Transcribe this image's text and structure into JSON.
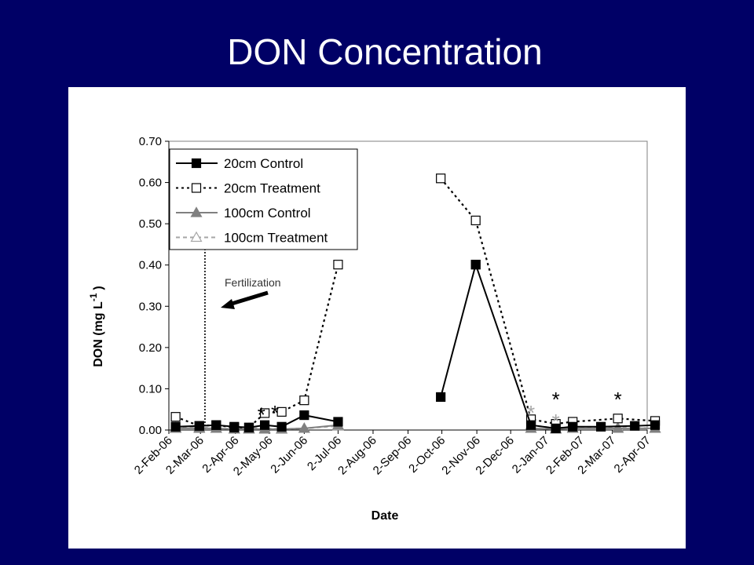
{
  "slide": {
    "title": "DON Concentration"
  },
  "chart_data": {
    "type": "line",
    "xlabel": "Date",
    "ylabel": "DON (mg L",
    "ylabel_sup": "-1",
    "ylabel_close": ")",
    "ylim": [
      0,
      0.7
    ],
    "yticks": [
      "0.00",
      "0.10",
      "0.20",
      "0.30",
      "0.40",
      "0.50",
      "0.60",
      "0.70"
    ],
    "xlim": [
      "2006-02-02",
      "2007-04-02"
    ],
    "xticks": [
      {
        "date": "2006-02-02",
        "label": "2-Feb-06"
      },
      {
        "date": "2006-03-02",
        "label": "2-Mar-06"
      },
      {
        "date": "2006-04-02",
        "label": "2-Apr-06"
      },
      {
        "date": "2006-05-02",
        "label": "2-May-06"
      },
      {
        "date": "2006-06-02",
        "label": "2-Jun-06"
      },
      {
        "date": "2006-07-02",
        "label": "2-Jul-06"
      },
      {
        "date": "2006-08-02",
        "label": "2-Aug-06"
      },
      {
        "date": "2006-09-02",
        "label": "2-Sep-06"
      },
      {
        "date": "2006-10-02",
        "label": "2-Oct-06"
      },
      {
        "date": "2006-11-02",
        "label": "2-Nov-06"
      },
      {
        "date": "2006-12-02",
        "label": "2-Dec-06"
      },
      {
        "date": "2007-01-02",
        "label": "2-Jan-07"
      },
      {
        "date": "2007-02-02",
        "label": "2-Feb-07"
      },
      {
        "date": "2007-03-02",
        "label": "2-Mar-07"
      },
      {
        "date": "2007-04-02",
        "label": "2-Apr-07"
      }
    ],
    "legend_position": "top-left",
    "grid": false,
    "series": [
      {
        "name": "20cm Control",
        "marker": "square-filled",
        "line": "solid",
        "color": "#000000",
        "segments": [
          [
            [
              "2006-02-08",
              0.008
            ],
            [
              "2006-03-01",
              0.01
            ],
            [
              "2006-03-16",
              0.012
            ],
            [
              "2006-04-01",
              0.008
            ],
            [
              "2006-04-14",
              0.006
            ],
            [
              "2006-04-28",
              0.012
            ],
            [
              "2006-05-13",
              0.008
            ],
            [
              "2006-06-02",
              0.036
            ],
            [
              "2006-07-02",
              0.02
            ]
          ],
          [
            [
              "2006-10-01",
              0.08
            ],
            [
              "2006-11-01",
              0.401
            ]
          ],
          [
            [
              "2006-11-01",
              0.401
            ],
            [
              "2006-12-20",
              0.012
            ],
            [
              "2007-01-11",
              0.004
            ],
            [
              "2007-01-26",
              0.008
            ],
            [
              "2007-02-20",
              0.008
            ],
            [
              "2007-03-22",
              0.01
            ],
            [
              "2007-04-09",
              0.012
            ]
          ]
        ]
      },
      {
        "name": "20cm Treatment",
        "marker": "square-open",
        "line": "dotted",
        "color": "#000000",
        "segments": [
          [
            [
              "2006-02-08",
              0.032
            ],
            [
              "2006-03-01",
              0.01
            ],
            [
              "2006-03-16",
              0.012
            ],
            [
              "2006-04-01",
              0.006
            ],
            [
              "2006-04-14",
              0.006
            ],
            [
              "2006-04-28",
              0.041
            ],
            [
              "2006-05-13",
              0.044
            ],
            [
              "2006-06-02",
              0.072
            ],
            [
              "2006-07-02",
              0.401
            ]
          ],
          [
            [
              "2006-10-01",
              0.61
            ],
            [
              "2006-11-01",
              0.508
            ],
            [
              "2006-12-20",
              0.026
            ],
            [
              "2007-01-11",
              0.015
            ],
            [
              "2007-01-26",
              0.02
            ],
            [
              "2007-03-07",
              0.028
            ],
            [
              "2007-04-09",
              0.022
            ]
          ]
        ]
      },
      {
        "name": "100cm Control",
        "marker": "triangle-filled",
        "line": "solid",
        "color": "#808080",
        "segments": [
          [
            [
              "2006-02-08",
              0.004
            ],
            [
              "2006-03-01",
              0.004
            ],
            [
              "2006-03-16",
              0.004
            ],
            [
              "2006-04-01",
              0.002
            ],
            [
              "2006-04-14",
              0.002
            ],
            [
              "2006-04-28",
              0.002
            ],
            [
              "2006-05-13",
              0.002
            ],
            [
              "2006-06-02",
              0.004
            ],
            [
              "2006-07-02",
              0.012
            ]
          ],
          [
            [
              "2006-12-20",
              0.004
            ],
            [
              "2007-01-11",
              0.002
            ],
            [
              "2007-01-26",
              0.004
            ],
            [
              "2007-03-07",
              0.004
            ],
            [
              "2007-04-09",
              0.004
            ]
          ]
        ]
      },
      {
        "name": "100cm Treatment",
        "marker": "triangle-open",
        "line": "dashed",
        "color": "#a6a6a6",
        "segments": [
          [
            [
              "2006-02-08",
              0.006
            ],
            [
              "2006-03-01",
              0.006
            ],
            [
              "2006-03-16",
              0.004
            ],
            [
              "2006-04-01",
              0.002
            ],
            [
              "2006-04-14",
              0.004
            ],
            [
              "2006-04-28",
              0.004
            ],
            [
              "2006-05-13",
              0.002
            ],
            [
              "2006-06-02",
              0.004
            ],
            [
              "2006-07-02",
              0.01
            ]
          ],
          [
            [
              "2006-12-20",
              0.012
            ],
            [
              "2007-01-11",
              0.004
            ],
            [
              "2007-01-26",
              0.008
            ],
            [
              "2007-03-07",
              0.006
            ],
            [
              "2007-04-09",
              0.004
            ]
          ]
        ]
      }
    ],
    "annotations": {
      "fertilization": {
        "label": "Fertilization",
        "date": "2006-03-06"
      },
      "significance_marks": [
        {
          "text": "*",
          "date": "2006-04-25",
          "y": 0.047,
          "color": "#000000"
        },
        {
          "text": "*",
          "date": "2006-05-07",
          "y": 0.051,
          "color": "#000000"
        },
        {
          "text": "*",
          "date": "2006-12-20",
          "y": 0.051,
          "color": "#a6a6a6"
        },
        {
          "text": "*",
          "date": "2007-01-11",
          "y": 0.084,
          "color": "#000000"
        },
        {
          "text": "*",
          "date": "2007-01-11",
          "y": 0.03,
          "color": "#a6a6a6"
        },
        {
          "text": "*",
          "date": "2007-03-07",
          "y": 0.084,
          "color": "#000000"
        }
      ]
    }
  }
}
